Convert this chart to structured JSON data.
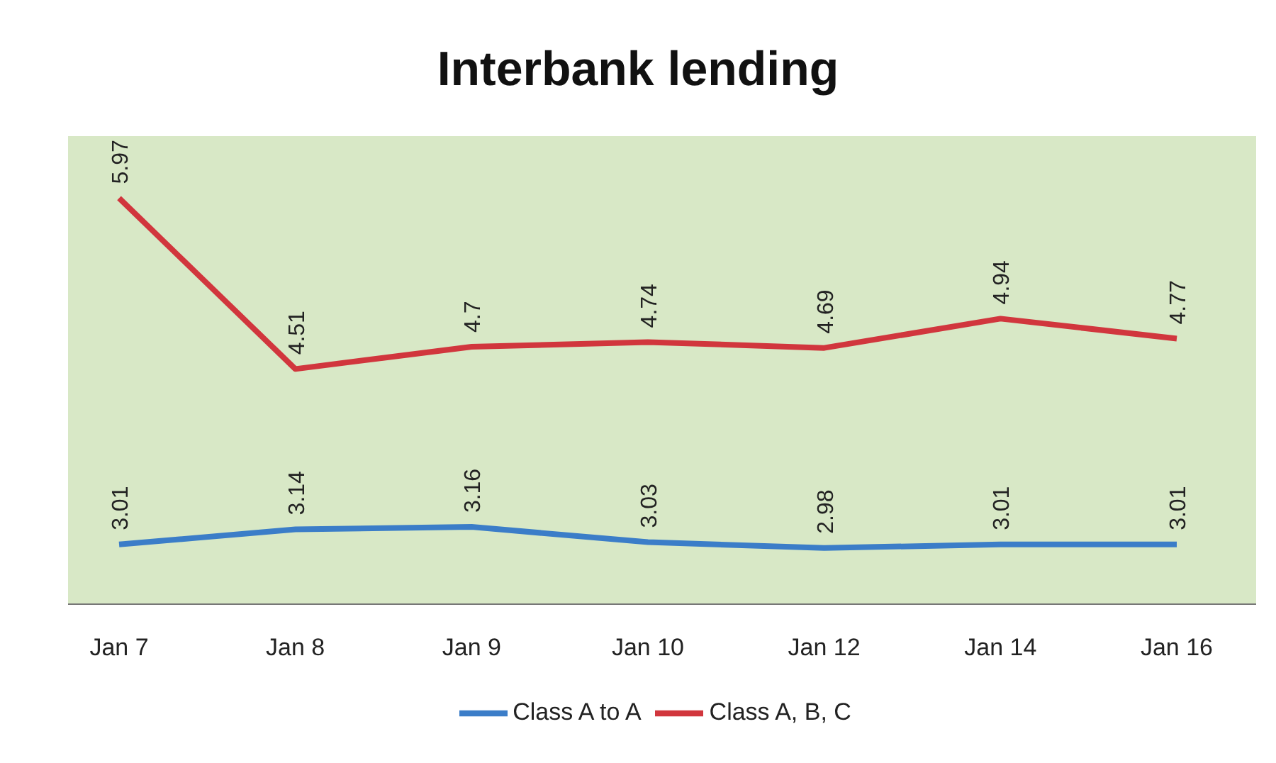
{
  "chart_data": {
    "type": "line",
    "title": "Interbank lending",
    "categories": [
      "Jan 7",
      "Jan 8",
      "Jan 9",
      "Jan 10",
      "Jan 12",
      "Jan 14",
      "Jan 16"
    ],
    "series": [
      {
        "name": "Class A to A",
        "color": "#3b7dc8",
        "values": [
          3.01,
          3.14,
          3.16,
          3.03,
          2.98,
          3.01,
          3.01
        ]
      },
      {
        "name": "Class A, B, C",
        "color": "#d1363d",
        "values": [
          5.97,
          4.51,
          4.7,
          4.74,
          4.69,
          4.94,
          4.77
        ]
      }
    ],
    "ylim": [
      2.5,
      6.5
    ],
    "tick_labels": "x",
    "data_labels": true,
    "legend": "bottom",
    "marker": "none",
    "line_style": "solid"
  }
}
